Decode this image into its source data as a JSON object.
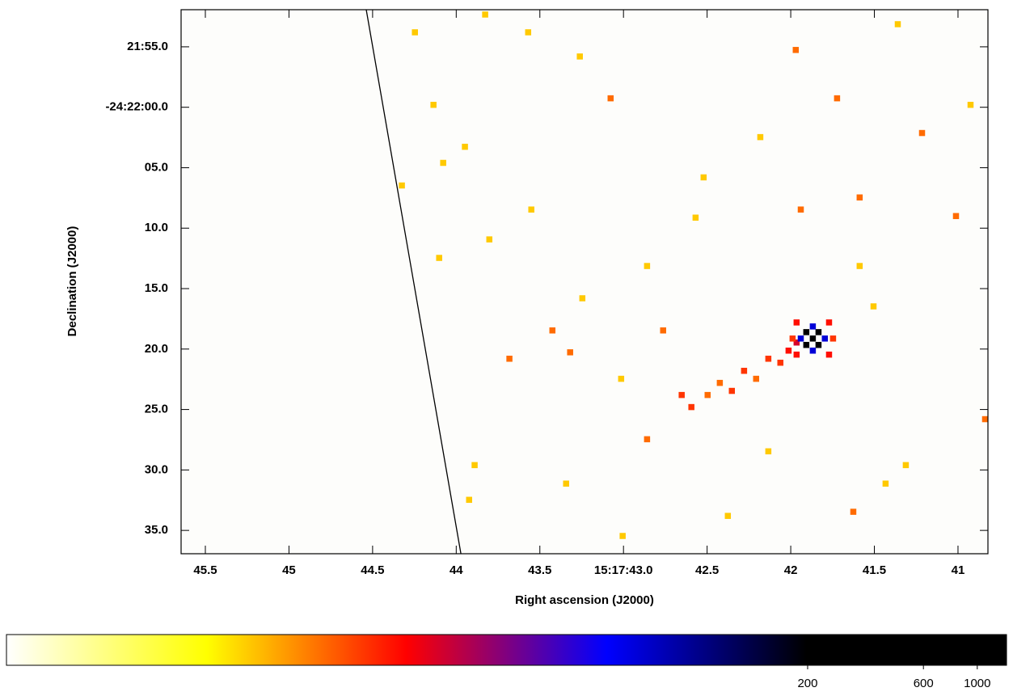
{
  "chart_data": {
    "type": "image",
    "x_label": "Right ascension (J2000)",
    "y_label": "Declination (J2000)",
    "xlim": [
      45.645,
      40.821
    ],
    "ylim": [
      -8.07,
      36.93
    ],
    "xticks": [
      45.5,
      45.0,
      44.5,
      44.0,
      43.5,
      {
        "value": 43.0,
        "label": "15:17:43.0"
      },
      42.5,
      42.0,
      41.5,
      41.0
    ],
    "yticks": [
      {
        "value": -5,
        "label": "21:55.0"
      },
      {
        "value": 0,
        "label": "-24:22:00.0"
      },
      {
        "value": 5,
        "label": "05.0"
      },
      {
        "value": 10,
        "label": "10.0"
      },
      {
        "value": 15,
        "label": "15.0"
      },
      {
        "value": 20,
        "label": "20.0"
      },
      {
        "value": 25,
        "label": "25.0"
      },
      {
        "value": 30,
        "label": "30.0"
      },
      {
        "value": 35,
        "label": "35.0"
      }
    ],
    "chip_edge": {
      "x": [
        44.538,
        43.972
      ],
      "y": [
        -8.07,
        36.93
      ],
      "color": "#000000"
    },
    "pixels": {
      "ra": [
        44.247,
        43.827,
        43.57,
        43.261,
        41.97,
        43.077,
        41.723,
        44.136,
        42.569,
        41.94,
        41.012,
        41.588,
        43.551,
        44.325,
        44.078,
        43.948,
        43.802,
        44.102,
        43.425,
        43.682,
        43.319,
        43.014,
        42.763,
        42.652,
        42.594,
        42.497,
        42.424,
        42.352,
        42.279,
        42.207,
        42.134,
        42.062,
        42.013,
        41.965,
        41.868,
        41.907,
        41.834,
        41.907,
        41.834,
        41.94,
        41.796,
        41.868,
        41.868,
        41.965,
        41.771,
        41.965,
        41.771,
        41.747,
        41.989,
        41.433,
        41.626,
        42.859,
        42.376,
        43.005,
        40.838,
        41.312,
        42.134,
        43.343,
        43.923,
        43.89,
        41.215,
        40.925,
        41.36,
        42.521,
        42.182,
        42.859,
        41.505,
        41.588,
        43.246
      ],
      "dec": [
        -6.2,
        -7.67,
        -6.2,
        -4.2,
        -4.74,
        -0.74,
        -0.74,
        -0.2,
        9.13,
        8.46,
        9.0,
        7.46,
        8.46,
        6.47,
        4.6,
        3.27,
        10.93,
        12.46,
        18.46,
        20.8,
        20.27,
        22.46,
        18.46,
        23.8,
        24.8,
        23.8,
        22.8,
        23.46,
        21.8,
        22.46,
        20.8,
        21.13,
        20.13,
        19.46,
        19.13,
        18.6,
        18.6,
        19.66,
        19.66,
        19.13,
        19.13,
        18.13,
        20.13,
        17.8,
        17.8,
        20.46,
        20.46,
        19.13,
        19.13,
        31.13,
        33.46,
        27.46,
        33.8,
        35.46,
        25.8,
        29.6,
        28.46,
        31.13,
        32.47,
        29.6,
        2.13,
        -0.2,
        -6.87,
        5.8,
        2.47,
        13.13,
        16.47,
        13.13,
        15.8
      ],
      "counts": [
        1,
        1,
        1,
        1,
        2,
        2,
        2,
        1,
        1,
        2,
        2,
        2,
        1,
        1,
        1,
        1,
        1,
        1,
        2,
        2,
        2,
        1,
        2,
        3,
        3,
        2,
        2,
        3,
        3,
        2,
        3,
        3,
        4,
        6,
        400,
        300,
        300,
        300,
        300,
        40,
        40,
        40,
        40,
        4,
        4,
        4,
        4,
        3,
        3,
        1,
        2,
        2,
        1,
        1,
        2,
        1,
        1,
        1,
        1,
        1,
        2,
        1,
        1,
        1,
        1,
        1,
        1,
        1,
        1
      ]
    },
    "colorbar": {
      "clim": [
        0.1,
        1320
      ],
      "log": true,
      "ticks": [
        200,
        600,
        1000
      ],
      "colormap": [
        "#ffffff",
        "#ffff00",
        "#ff0000",
        "#0000ff",
        "#000000",
        "#000000"
      ]
    }
  }
}
